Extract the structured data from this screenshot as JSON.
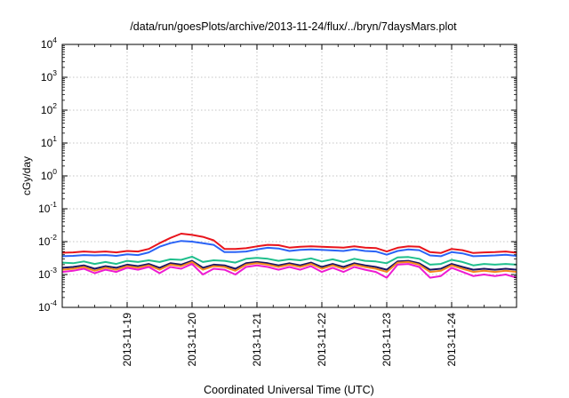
{
  "chart_data": {
    "type": "line",
    "title": "/data/run/goesPlots/archive/2013-11-24/flux/../bryn/7daysMars.plot",
    "xlabel": "Coordinated Universal Time (UTC)",
    "ylabel": "cGy/day",
    "yscale": "log",
    "ylim": [
      0.0001,
      10000
    ],
    "xlim": [
      "2013-11-18T00:00",
      "2013-11-24T24:00"
    ],
    "grid": true,
    "yticks": [
      {
        "value": 0.0001,
        "base": "10",
        "exp": "-4"
      },
      {
        "value": 0.001,
        "base": "10",
        "exp": "-3"
      },
      {
        "value": 0.01,
        "base": "10",
        "exp": "-2"
      },
      {
        "value": 0.1,
        "base": "10",
        "exp": "-1"
      },
      {
        "value": 1,
        "base": "10",
        "exp": "0"
      },
      {
        "value": 10,
        "base": "10",
        "exp": "1"
      },
      {
        "value": 100,
        "base": "10",
        "exp": "2"
      },
      {
        "value": 1000,
        "base": "10",
        "exp": "3"
      },
      {
        "value": 10000,
        "base": "10",
        "exp": "4"
      }
    ],
    "xticks": [
      "2013-11-19",
      "2013-11-20",
      "2013-11-21",
      "2013-11-22",
      "2013-11-23",
      "2013-11-24"
    ],
    "x": [
      "11-18 00:00",
      "11-18 04:00",
      "11-18 08:00",
      "11-18 12:00",
      "11-18 16:00",
      "11-18 20:00",
      "11-19 00:00",
      "11-19 04:00",
      "11-19 08:00",
      "11-19 12:00",
      "11-19 16:00",
      "11-19 20:00",
      "11-20 00:00",
      "11-20 04:00",
      "11-20 08:00",
      "11-20 12:00",
      "11-20 16:00",
      "11-20 20:00",
      "11-21 00:00",
      "11-21 04:00",
      "11-21 08:00",
      "11-21 12:00",
      "11-21 16:00",
      "11-21 20:00",
      "11-22 00:00",
      "11-22 04:00",
      "11-22 08:00",
      "11-22 12:00",
      "11-22 16:00",
      "11-22 20:00",
      "11-23 00:00",
      "11-23 04:00",
      "11-23 08:00",
      "11-23 12:00",
      "11-23 16:00",
      "11-23 20:00",
      "11-24 00:00",
      "11-24 04:00",
      "11-24 08:00",
      "11-24 12:00",
      "11-24 16:00",
      "11-24 20:00",
      "11-25 00:00"
    ],
    "series": [
      {
        "color": "#e8141c",
        "values": [
          0.0046,
          0.0047,
          0.005,
          0.0048,
          0.005,
          0.0047,
          0.0052,
          0.005,
          0.006,
          0.009,
          0.013,
          0.0175,
          0.016,
          0.014,
          0.011,
          0.006,
          0.006,
          0.0063,
          0.0072,
          0.008,
          0.0078,
          0.0066,
          0.007,
          0.0072,
          0.007,
          0.0068,
          0.0066,
          0.0072,
          0.0066,
          0.0064,
          0.005,
          0.0065,
          0.0072,
          0.007,
          0.0048,
          0.0045,
          0.006,
          0.0055,
          0.0045,
          0.0047,
          0.0048,
          0.005,
          0.0046
        ]
      },
      {
        "color": "#2a63f6",
        "values": [
          0.0036,
          0.0037,
          0.0039,
          0.0038,
          0.0039,
          0.0037,
          0.0041,
          0.0039,
          0.0047,
          0.007,
          0.009,
          0.0105,
          0.01,
          0.009,
          0.008,
          0.0048,
          0.0048,
          0.005,
          0.0058,
          0.0065,
          0.0062,
          0.0052,
          0.0056,
          0.0058,
          0.0056,
          0.0054,
          0.0052,
          0.0058,
          0.0052,
          0.005,
          0.004,
          0.0052,
          0.0058,
          0.0055,
          0.0038,
          0.0036,
          0.0048,
          0.0044,
          0.0036,
          0.0037,
          0.0038,
          0.004,
          0.0037
        ]
      },
      {
        "color": "#1fbf8c",
        "values": [
          0.0023,
          0.0022,
          0.0025,
          0.0021,
          0.0024,
          0.0021,
          0.0026,
          0.0024,
          0.0027,
          0.0024,
          0.0029,
          0.0028,
          0.0035,
          0.0024,
          0.0027,
          0.0026,
          0.0023,
          0.003,
          0.0032,
          0.003,
          0.0026,
          0.0029,
          0.0027,
          0.0031,
          0.0025,
          0.0029,
          0.0024,
          0.003,
          0.0026,
          0.0025,
          0.0022,
          0.0033,
          0.0034,
          0.003,
          0.002,
          0.0021,
          0.0028,
          0.0024,
          0.0019,
          0.0021,
          0.002,
          0.0021,
          0.002
        ]
      },
      {
        "color": "#1b1464",
        "values": [
          0.0016,
          0.0017,
          0.0019,
          0.0015,
          0.0018,
          0.0016,
          0.002,
          0.0018,
          0.0021,
          0.0016,
          0.0022,
          0.002,
          0.0026,
          0.0016,
          0.002,
          0.0019,
          0.0015,
          0.0022,
          0.0024,
          0.0022,
          0.0019,
          0.0022,
          0.0019,
          0.0023,
          0.0017,
          0.0021,
          0.0017,
          0.0022,
          0.0019,
          0.0017,
          0.0014,
          0.0025,
          0.0026,
          0.0022,
          0.0014,
          0.0015,
          0.0021,
          0.0017,
          0.0014,
          0.0015,
          0.0014,
          0.0015,
          0.0014
        ]
      },
      {
        "color": "#f58a1f",
        "values": [
          0.0014,
          0.0015,
          0.0017,
          0.0013,
          0.0016,
          0.0014,
          0.0018,
          0.0016,
          0.0019,
          0.0014,
          0.002,
          0.0018,
          0.0024,
          0.0014,
          0.0018,
          0.0017,
          0.0013,
          0.002,
          0.0022,
          0.002,
          0.0017,
          0.002,
          0.0017,
          0.0021,
          0.0015,
          0.0019,
          0.0015,
          0.002,
          0.0017,
          0.0015,
          0.0012,
          0.0023,
          0.0024,
          0.002,
          0.0012,
          0.0013,
          0.0019,
          0.0015,
          0.0012,
          0.0013,
          0.0012,
          0.0013,
          0.0012
        ]
      },
      {
        "color": "#ee1bd2",
        "values": [
          0.0012,
          0.0013,
          0.0015,
          0.0011,
          0.0014,
          0.0012,
          0.0016,
          0.0014,
          0.0017,
          0.0011,
          0.0017,
          0.0015,
          0.0021,
          0.001,
          0.0015,
          0.0014,
          0.001,
          0.0017,
          0.0019,
          0.0017,
          0.0014,
          0.0017,
          0.0014,
          0.0018,
          0.0012,
          0.0016,
          0.0012,
          0.0017,
          0.0014,
          0.0012,
          0.0008,
          0.002,
          0.0021,
          0.0017,
          0.0008,
          0.0009,
          0.0016,
          0.0012,
          0.0009,
          0.001,
          0.0009,
          0.001,
          0.0008
        ]
      }
    ]
  }
}
